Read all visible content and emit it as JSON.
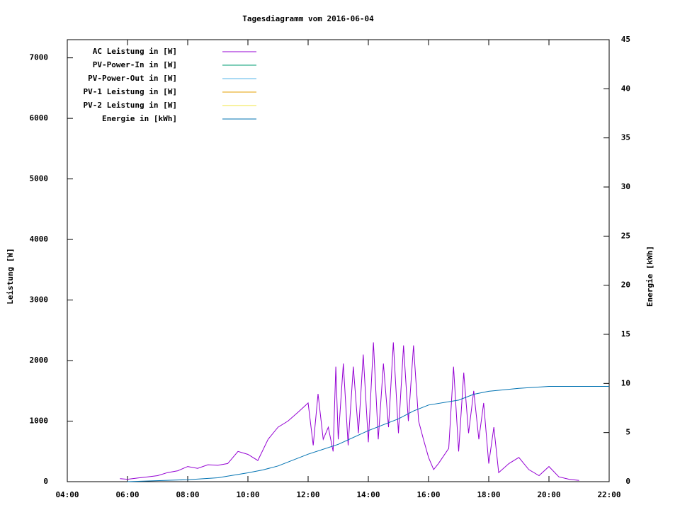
{
  "chart_data": {
    "type": "line",
    "title": "Tagesdiagramm vom 2016-06-04",
    "y_label": "Leistung [W]",
    "y2_label": "Energie [kWh]",
    "xlim": [
      4,
      22
    ],
    "xticks": [
      {
        "value": 4,
        "label": "04:00"
      },
      {
        "value": 6,
        "label": "06:00"
      },
      {
        "value": 8,
        "label": "08:00"
      },
      {
        "value": 10,
        "label": "10:00"
      },
      {
        "value": 12,
        "label": "12:00"
      },
      {
        "value": 14,
        "label": "14:00"
      },
      {
        "value": 16,
        "label": "16:00"
      },
      {
        "value": 18,
        "label": "18:00"
      },
      {
        "value": 20,
        "label": "20:00"
      },
      {
        "value": 22,
        "label": "22:00"
      }
    ],
    "ylim": [
      0,
      7300
    ],
    "yticks": [
      0,
      1000,
      2000,
      3000,
      4000,
      5000,
      6000,
      7000
    ],
    "y2lim": [
      0,
      45
    ],
    "y2ticks": [
      0,
      5,
      10,
      15,
      20,
      25,
      30,
      35,
      40,
      45
    ],
    "legend": "top-left",
    "series": [
      {
        "name": "AC Leistung in [W]",
        "color": "#9400d3",
        "x": [
          5.75,
          6.0,
          6.33,
          6.67,
          7.0,
          7.33,
          7.67,
          8.0,
          8.33,
          8.67,
          9.0,
          9.33,
          9.67,
          10.0,
          10.33,
          10.67,
          11.0,
          11.33,
          11.67,
          12.0,
          12.17,
          12.33,
          12.5,
          12.67,
          12.83,
          12.92,
          13.0,
          13.17,
          13.33,
          13.5,
          13.67,
          13.83,
          14.0,
          14.17,
          14.33,
          14.5,
          14.67,
          14.83,
          15.0,
          15.17,
          15.33,
          15.5,
          15.67,
          15.83,
          16.0,
          16.17,
          16.33,
          16.67,
          16.83,
          17.0,
          17.17,
          17.33,
          17.5,
          17.67,
          17.83,
          18.0,
          18.17,
          18.33,
          18.67,
          19.0,
          19.33,
          19.67,
          20.0,
          20.33,
          20.67,
          21.0
        ],
        "values": [
          50,
          40,
          60,
          80,
          100,
          150,
          180,
          250,
          220,
          280,
          270,
          300,
          500,
          450,
          350,
          700,
          900,
          1000,
          1150,
          1300,
          600,
          1450,
          700,
          900,
          500,
          1900,
          700,
          1950,
          600,
          1900,
          800,
          2100,
          650,
          2300,
          700,
          1950,
          900,
          2300,
          800,
          2250,
          1000,
          2250,
          1000,
          700,
          400,
          200,
          300,
          550,
          1900,
          500,
          1800,
          800,
          1500,
          700,
          1300,
          300,
          900,
          150,
          300,
          400,
          200,
          100,
          250,
          80,
          40,
          20
        ]
      },
      {
        "name": "PV-Power-In in [W]",
        "color": "#009e73",
        "x": [],
        "values": []
      },
      {
        "name": "PV-Power-Out in [W]",
        "color": "#56b4e9",
        "x": [],
        "values": []
      },
      {
        "name": "PV-1 Leistung in [W]",
        "color": "#e69f00",
        "x": [],
        "values": []
      },
      {
        "name": "PV-2 Leistung in [W]",
        "color": "#f0e442",
        "x": [],
        "values": []
      },
      {
        "name": "Energie in [kWh]",
        "color": "#0072b2",
        "axis": "y2",
        "x": [
          6.0,
          8.0,
          9.0,
          10.0,
          10.5,
          11.0,
          12.0,
          13.0,
          14.0,
          15.0,
          15.5,
          16.0,
          17.0,
          17.5,
          18.0,
          19.0,
          20.0,
          21.0,
          22.0
        ],
        "values": [
          0,
          0.2,
          0.4,
          0.9,
          1.2,
          1.6,
          2.8,
          3.8,
          5.2,
          6.4,
          7.2,
          7.8,
          8.3,
          8.9,
          9.2,
          9.5,
          9.7,
          9.7,
          9.7
        ]
      }
    ]
  }
}
